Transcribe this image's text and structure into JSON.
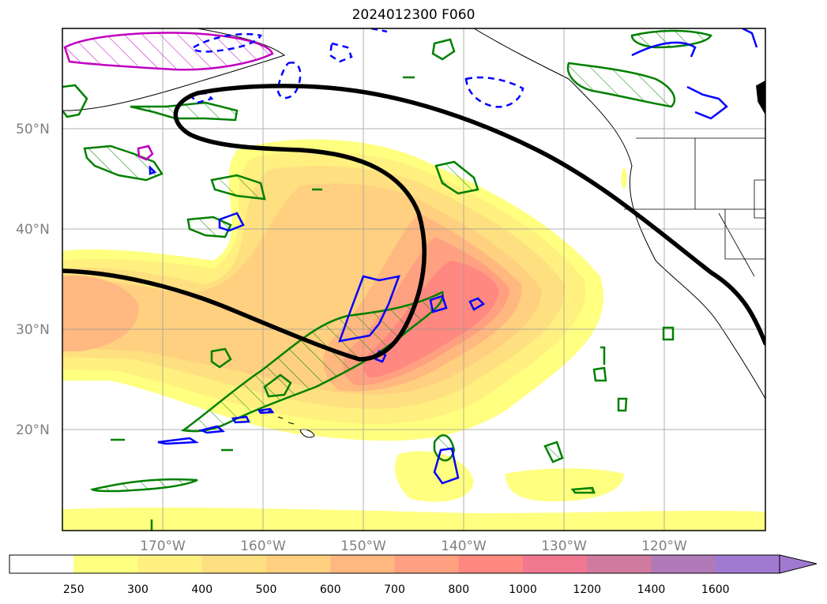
{
  "title": "2024012300 F060",
  "map": {
    "extent": {
      "lon_min": -180,
      "lon_max": -110,
      "lat_min": 10,
      "lat_max": 60
    },
    "lat_gridlines": [
      20,
      30,
      40,
      50
    ],
    "lon_gridlines": [
      -170,
      -160,
      -150,
      -140,
      -130,
      -120
    ],
    "lat_labels": [
      "20°N",
      "30°N",
      "40°N",
      "50°N"
    ],
    "lon_labels": [
      "170°W",
      "160°W",
      "150°W",
      "140°W",
      "130°W",
      "120°W"
    ],
    "colors": {
      "land_outline": "#000000",
      "gridline": "#999999",
      "bold_contour": "#000000",
      "green_contour": "#008000",
      "blue_contour": "#0000ff",
      "magenta_contour": "#c000c0"
    }
  },
  "colorbar": {
    "levels": [
      "250",
      "300",
      "400",
      "500",
      "600",
      "700",
      "800",
      "1000",
      "1200",
      "1400",
      "1600"
    ],
    "colors": [
      "#ffffff",
      "#ffff80",
      "#fff080",
      "#ffe080",
      "#ffd080",
      "#ffb880",
      "#ffa080",
      "#ff8880",
      "#f07890",
      "#d07aa0",
      "#b07ab8",
      "#a07ad0"
    ],
    "extend": "max"
  }
}
